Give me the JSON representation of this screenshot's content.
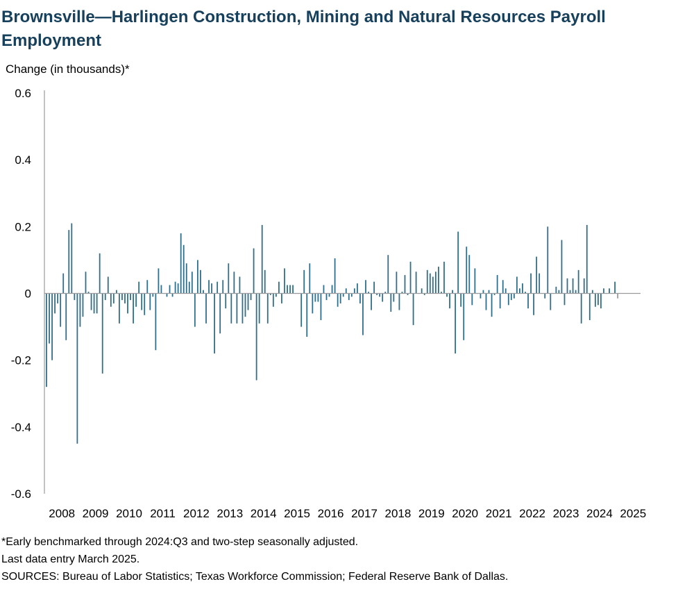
{
  "title": "Brownsville—Harlingen Construction, Mining and Natural Resources Payroll Employment",
  "ylabel": "Change (in thousands)*",
  "notes": [
    "*Early benchmarked through 2024:Q3 and two-step seasonally adjusted.",
    "Last data entry March 2025.",
    "SOURCES: Bureau of Labor Statistics; Texas Workforce Commission; Federal Reserve Bank of Dallas."
  ],
  "chart_data": {
    "type": "bar",
    "title": "Brownsville—Harlingen Construction, Mining and Natural Resources Payroll Employment",
    "ylabel": "Change (in thousands)*",
    "xlabel": "",
    "ylim": [
      -0.6,
      0.6
    ],
    "yticks": [
      0.6,
      0.4,
      0.2,
      0,
      -0.2,
      -0.4,
      -0.6
    ],
    "ytick_labels": [
      "0.6",
      "0.4",
      "0.2",
      "0",
      "-0.2",
      "-0.4",
      "-0.6"
    ],
    "xtick_labels": [
      "2008",
      "2009",
      "2010",
      "2011",
      "2012",
      "2013",
      "2014",
      "2015",
      "2016",
      "2017",
      "2018",
      "2019",
      "2020",
      "2021",
      "2022",
      "2023",
      "2024",
      "2025"
    ],
    "start": "2008-01",
    "frequency": "monthly",
    "grid": false,
    "legend": "none",
    "bar_color": "#2f6f8c",
    "last_bar_color": "#9a9a9a",
    "axis_color": "#9a9a9a",
    "series": [
      {
        "values": [
          -0.28,
          -0.15,
          -0.2,
          -0.06,
          -0.03,
          -0.1,
          0.06,
          -0.14,
          0.19,
          0.21,
          -0.02,
          -0.45,
          -0.1,
          -0.07,
          0.065,
          0.005,
          -0.05,
          -0.06,
          -0.06,
          0.12,
          -0.24,
          -0.02,
          0.05,
          -0.04,
          -0.03,
          0.01,
          -0.09,
          -0.02,
          -0.03,
          -0.06,
          -0.02,
          -0.09,
          -0.04,
          0.035,
          -0.05,
          -0.065,
          0.04,
          -0.05,
          -0.01,
          -0.17,
          0.075,
          0.025,
          0.0,
          -0.01,
          0.025,
          -0.01,
          0.035,
          0.03,
          0.18,
          0.145,
          0.09,
          0.035,
          0.065,
          -0.1,
          0.1,
          0.07,
          0.01,
          -0.09,
          0.04,
          0.03,
          -0.18,
          0.035,
          -0.12,
          0.04,
          -0.045,
          0.09,
          -0.09,
          0.065,
          -0.09,
          0.05,
          -0.09,
          -0.07,
          -0.05,
          -0.02,
          0.135,
          -0.26,
          -0.09,
          0.205,
          0.07,
          -0.09,
          -0.005,
          -0.04,
          -0.01,
          0.035,
          -0.03,
          0.075,
          0.025,
          0.025,
          0.025,
          0.0,
          0.0,
          -0.1,
          0.07,
          -0.13,
          0.09,
          -0.06,
          -0.025,
          -0.025,
          -0.08,
          0.025,
          -0.02,
          -0.01,
          0.025,
          0.105,
          -0.04,
          -0.03,
          -0.01,
          0.015,
          -0.02,
          -0.01,
          0.015,
          0.03,
          -0.03,
          -0.125,
          0.04,
          0.005,
          -0.05,
          0.035,
          -0.005,
          -0.01,
          -0.025,
          0.005,
          0.115,
          -0.055,
          -0.025,
          0.065,
          -0.05,
          0.005,
          0.055,
          -0.005,
          0.095,
          -0.095,
          0.065,
          0.0,
          0.015,
          -0.005,
          0.07,
          0.06,
          0.05,
          0.065,
          0.08,
          0.005,
          0.095,
          -0.01,
          -0.045,
          0.01,
          -0.18,
          0.185,
          -0.04,
          -0.14,
          0.14,
          0.115,
          -0.035,
          0.075,
          0.0,
          -0.015,
          0.01,
          -0.05,
          0.01,
          -0.07,
          -0.005,
          0.055,
          -0.045,
          0.04,
          0.015,
          -0.035,
          -0.02,
          -0.015,
          0.05,
          0.015,
          0.03,
          0.005,
          -0.045,
          0.06,
          -0.065,
          0.11,
          0.06,
          0.0,
          -0.015,
          0.2,
          -0.05,
          0.0,
          0.02,
          0.01,
          0.16,
          -0.035,
          0.045,
          0.01,
          0.045,
          0.01,
          0.07,
          -0.09,
          0.045,
          0.205,
          -0.08,
          0.01,
          -0.04,
          -0.035,
          -0.045,
          0.015,
          0.0,
          0.015,
          0.0,
          0.035,
          -0.015
        ]
      }
    ]
  }
}
